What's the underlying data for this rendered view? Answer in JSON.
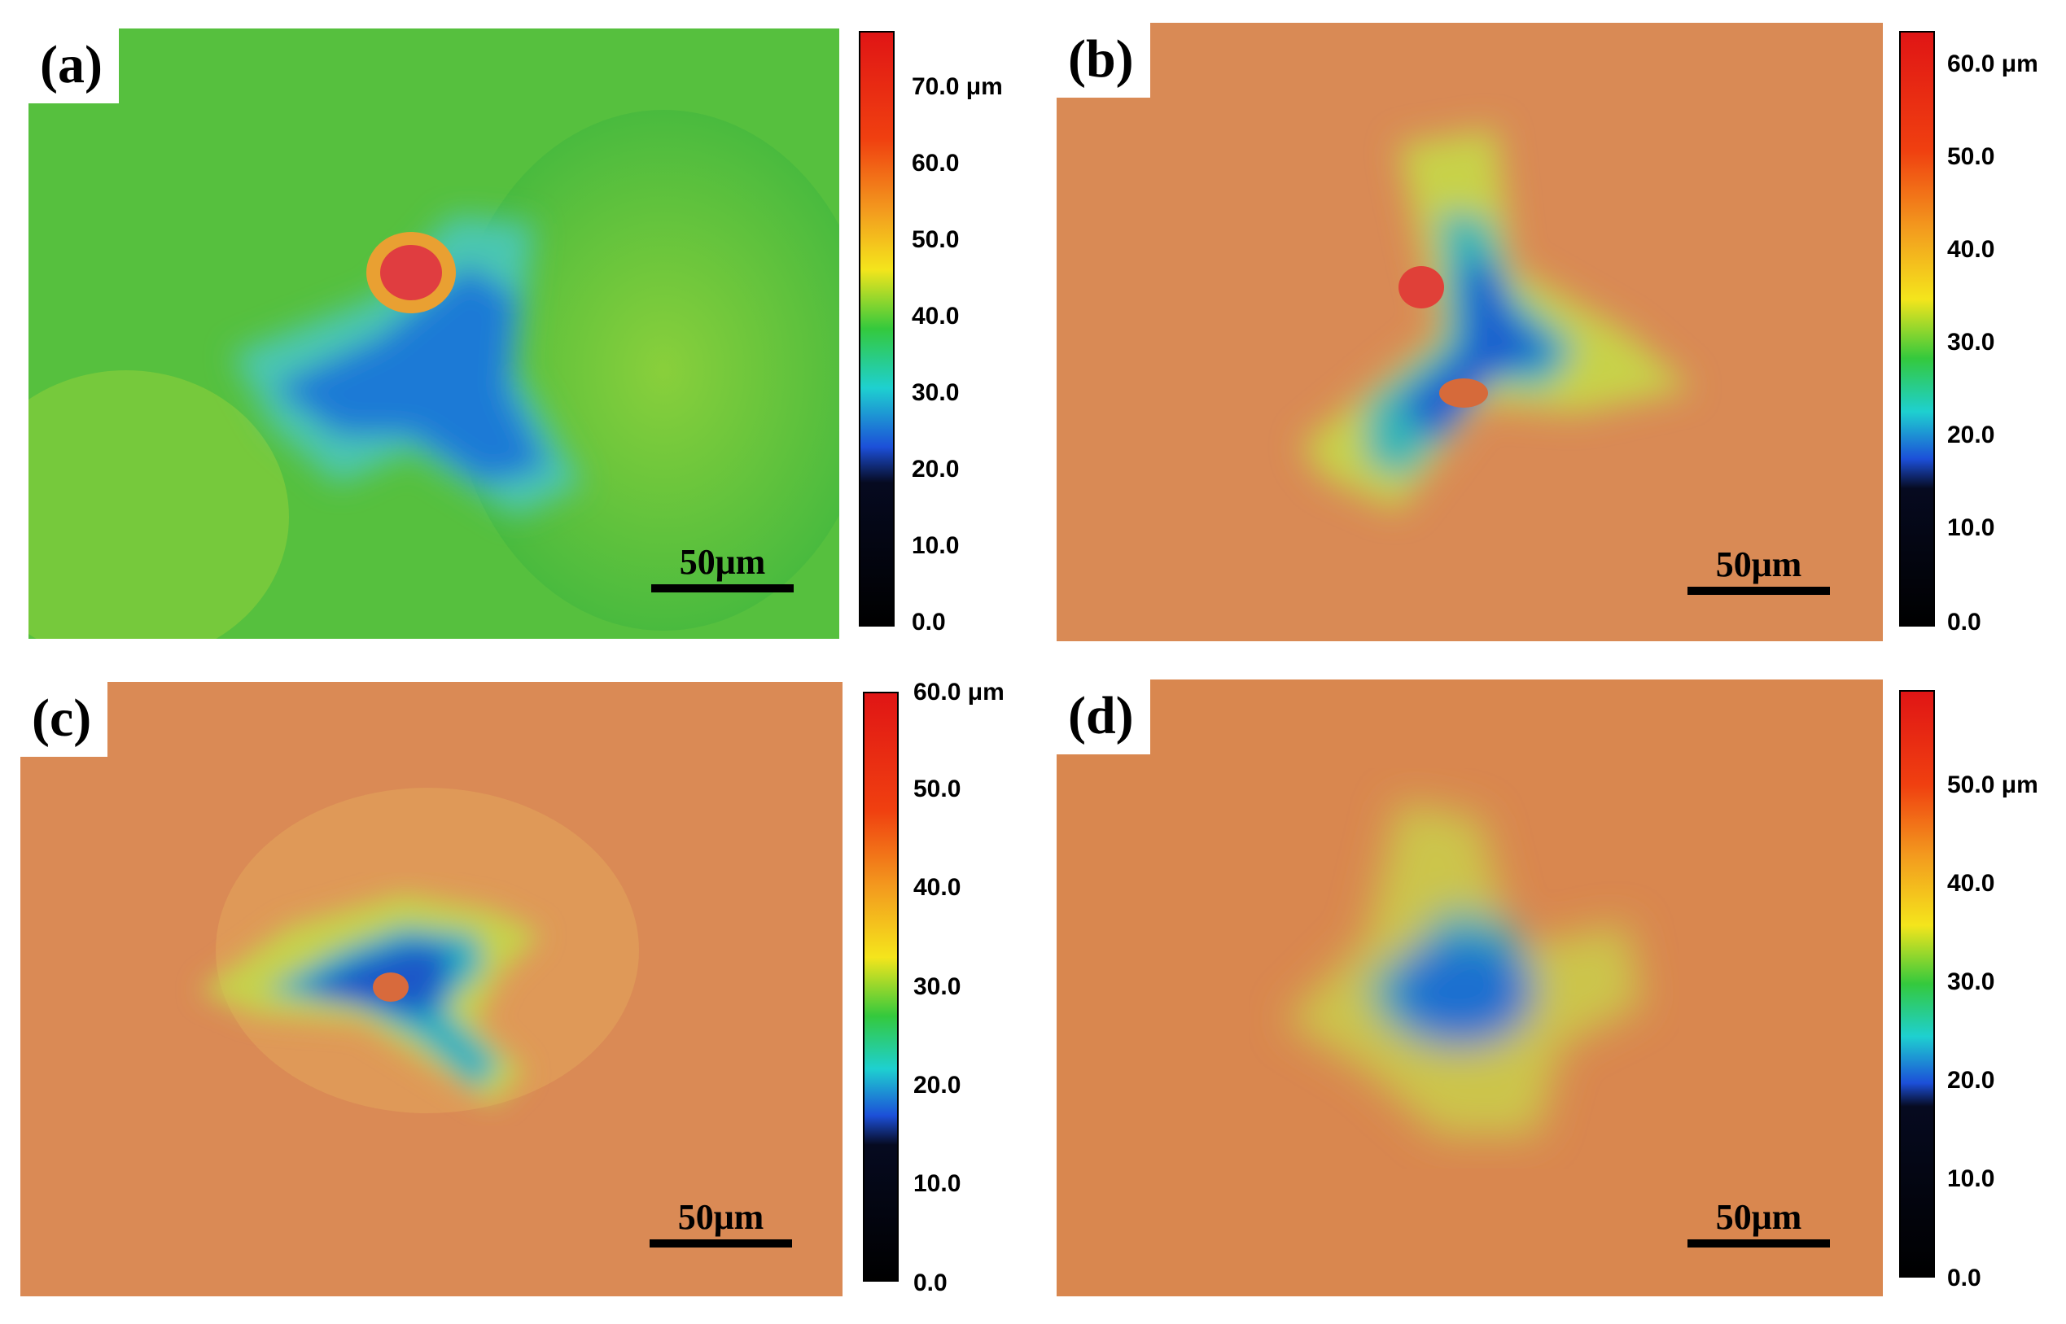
{
  "panels": [
    {
      "label": "(a)",
      "scale_bar": "50μm",
      "colorbar_ticks": [
        "70.0 μm",
        "60.0",
        "50.0",
        "40.0",
        "30.0",
        "20.0",
        "10.0",
        "0.0"
      ]
    },
    {
      "label": "(b)",
      "scale_bar": "50μm",
      "colorbar_ticks": [
        "60.0 μm",
        "50.0",
        "40.0",
        "30.0",
        "20.0",
        "10.0",
        "0.0"
      ]
    },
    {
      "label": "(c)",
      "scale_bar": "50μm",
      "colorbar_ticks": [
        "60.0 μm",
        "50.0",
        "40.0",
        "30.0",
        "20.0",
        "10.0",
        "0.0"
      ]
    },
    {
      "label": "(d)",
      "scale_bar": "50μm",
      "colorbar_ticks": [
        "50.0 μm",
        "40.0",
        "30.0",
        "20.0",
        "10.0",
        "0.0"
      ]
    }
  ],
  "colors": {
    "surface_green": "#5cc83a",
    "surface_orange": "#d9864e",
    "dent_blue": "#1f6fd0",
    "dent_cyan": "#22b6c8",
    "peak_red": "#e0343a"
  }
}
